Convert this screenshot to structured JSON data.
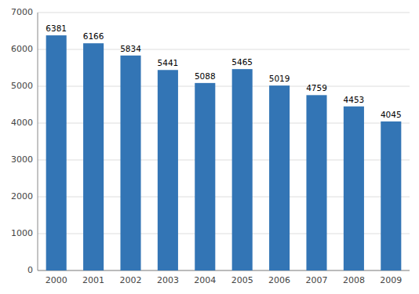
{
  "chart_data": {
    "type": "bar",
    "categories": [
      "2000",
      "2001",
      "2002",
      "2003",
      "2004",
      "2005",
      "2006",
      "2007",
      "2008",
      "2009"
    ],
    "values": [
      6381,
      6166,
      5834,
      5441,
      5088,
      5465,
      5019,
      4759,
      4453,
      4045
    ],
    "color": "#3375B5",
    "ylim": [
      0,
      7000
    ],
    "yticks": [
      0,
      1000,
      2000,
      3000,
      4000,
      5000,
      6000,
      7000
    ],
    "grid": true,
    "data_labels": true
  }
}
